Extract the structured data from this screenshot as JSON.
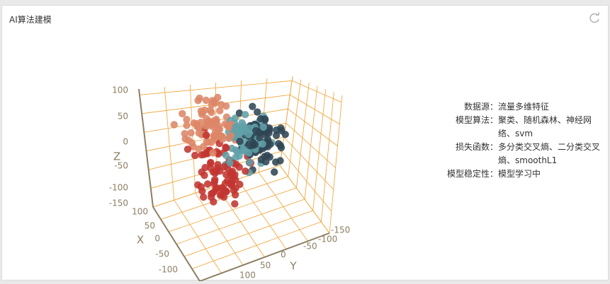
{
  "panel": {
    "title": "AI算法建模",
    "refresh_icon": "refresh-icon"
  },
  "info": [
    {
      "label": "数据源：",
      "value": "流量多维特征"
    },
    {
      "label": "模型算法：",
      "value": "聚类、随机森林、神经网络、svm"
    },
    {
      "label": "损失函数：",
      "value": "多分类交叉熵、二分类交叉熵、smoothL1"
    },
    {
      "label": "模型稳定性：",
      "value": "模型学习中"
    }
  ],
  "colors": {
    "axis_line": "#8c7e62",
    "grid": "#f0a030",
    "tick_text": "#8c7e62",
    "series": [
      "#c23531",
      "#dd8668",
      "#61a0a8",
      "#2f4554"
    ]
  },
  "chart_data": {
    "type": "scatter3d",
    "title": "",
    "axes": {
      "x": {
        "label": "X",
        "range": [
          -150,
          150
        ],
        "ticks": [
          "-100",
          "-50",
          "0",
          "50",
          "100"
        ]
      },
      "y": {
        "label": "Y",
        "range": [
          -150,
          150
        ],
        "ticks": [
          "-150",
          "-100",
          "-50",
          "0",
          "50",
          "100"
        ]
      },
      "z": {
        "label": "Z",
        "range": [
          -150,
          100
        ],
        "ticks": [
          "-150",
          "-100",
          "-50",
          "0",
          "50",
          "100"
        ]
      }
    },
    "series_count": 4,
    "points_per_series": 90,
    "note_on_values": "approximate point clouds: red low-z, salmon upper-left, teal center, dark upper-right"
  }
}
